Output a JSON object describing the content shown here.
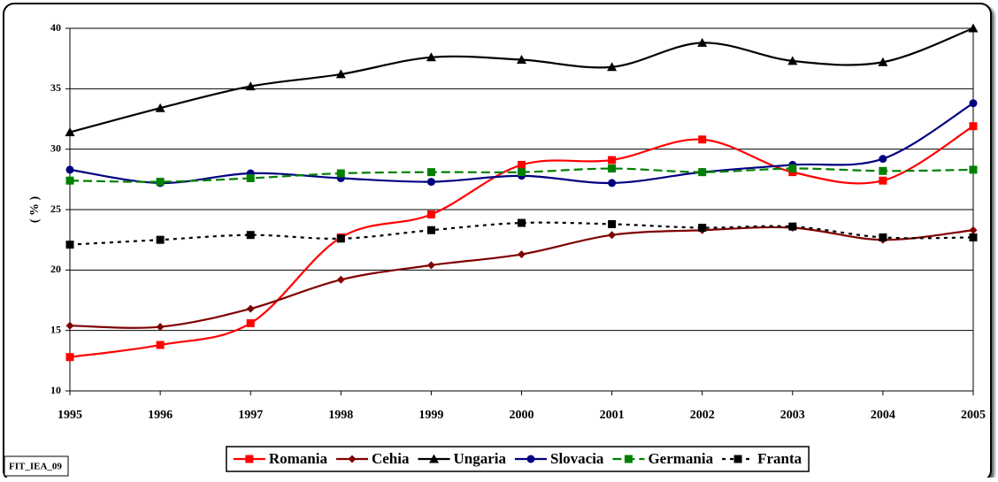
{
  "chart_data": {
    "type": "line",
    "ylabel": "( % )",
    "footnote": "FIT_IEA_09",
    "categories": [
      "1995",
      "1996",
      "1997",
      "1998",
      "1999",
      "2000",
      "2001",
      "2002",
      "2003",
      "2004",
      "2005"
    ],
    "ylim": [
      10,
      40
    ],
    "yticks": [
      10,
      15,
      20,
      25,
      30,
      35,
      40
    ],
    "grid": true,
    "smooth": true,
    "legend": "bottom",
    "series": [
      {
        "name": "Romania",
        "color": "#ff0000",
        "dash": "solid",
        "marker": "square",
        "values": [
          12.8,
          13.8,
          15.6,
          22.7,
          24.6,
          28.7,
          29.1,
          30.8,
          28.1,
          27.4,
          31.9
        ]
      },
      {
        "name": "Cehia",
        "color": "#800000",
        "dash": "solid",
        "marker": "diamond",
        "values": [
          15.4,
          15.3,
          16.8,
          19.2,
          20.4,
          21.3,
          22.9,
          23.3,
          23.5,
          22.5,
          23.3
        ]
      },
      {
        "name": "Ungaria",
        "color": "#000000",
        "dash": "solid",
        "marker": "triangle",
        "values": [
          31.4,
          33.4,
          35.2,
          36.2,
          37.6,
          37.4,
          36.8,
          38.8,
          37.3,
          37.2,
          40.0
        ]
      },
      {
        "name": "Slovacia",
        "color": "#000080",
        "dash": "solid",
        "marker": "circle",
        "values": [
          28.3,
          27.2,
          28.0,
          27.6,
          27.3,
          27.8,
          27.2,
          28.1,
          28.7,
          29.2,
          33.8
        ]
      },
      {
        "name": "Germania",
        "color": "#008000",
        "dash": "dashed",
        "marker": "square",
        "values": [
          27.4,
          27.3,
          27.6,
          28.0,
          28.1,
          28.1,
          28.4,
          28.1,
          28.4,
          28.2,
          28.3
        ]
      },
      {
        "name": "Franta",
        "color": "#000000",
        "dash": "dotted",
        "marker": "square",
        "values": [
          22.1,
          22.5,
          22.9,
          22.6,
          23.3,
          23.9,
          23.8,
          23.5,
          23.6,
          22.7,
          22.7
        ]
      }
    ]
  }
}
